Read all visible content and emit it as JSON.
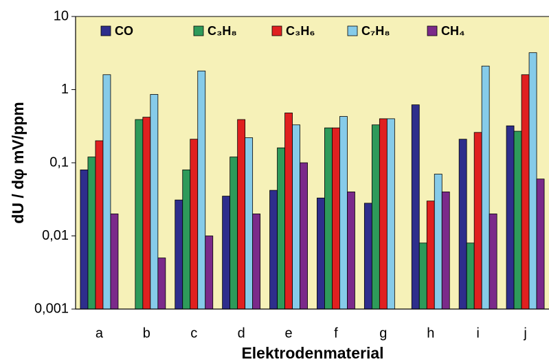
{
  "chart_data": {
    "type": "bar",
    "ylabel": "dU / dφ mV/ppm",
    "xlabel": "Elektrodenmaterial",
    "categories": [
      "a",
      "b",
      "c",
      "d",
      "e",
      "f",
      "g",
      "h",
      "i",
      "j"
    ],
    "series": [
      {
        "name": "CO",
        "color": "#2e2e8c",
        "values": [
          0.08,
          null,
          0.031,
          0.035,
          0.042,
          0.033,
          0.028,
          0.62,
          0.21,
          0.32
        ]
      },
      {
        "name": "C₃H₈",
        "color": "#2e9a5a",
        "values": [
          0.12,
          0.39,
          0.08,
          0.12,
          0.16,
          0.3,
          0.33,
          0.008,
          0.008,
          0.27
        ]
      },
      {
        "name": "C₃H₆",
        "color": "#e02020",
        "values": [
          0.2,
          0.42,
          0.21,
          0.39,
          0.48,
          0.3,
          0.4,
          0.03,
          0.26,
          1.6
        ]
      },
      {
        "name": "C₇H₈",
        "color": "#86cbe9",
        "values": [
          1.6,
          0.86,
          1.8,
          0.22,
          0.33,
          0.43,
          0.4,
          0.07,
          2.1,
          3.2
        ]
      },
      {
        "name": "CH₄",
        "color": "#7b2a8a",
        "values": [
          0.02,
          0.005,
          0.01,
          0.02,
          0.1,
          0.04,
          null,
          0.04,
          0.02,
          0.06
        ]
      }
    ],
    "ylim": [
      0.001,
      10
    ],
    "yticks": [
      {
        "value": 0.001,
        "label": "0,001"
      },
      {
        "value": 0.01,
        "label": "0,01"
      },
      {
        "value": 0.1,
        "label": "0,1"
      },
      1,
      10
    ],
    "log_y": true,
    "grid": false,
    "legend": "top",
    "background": "#f6f1b8"
  }
}
